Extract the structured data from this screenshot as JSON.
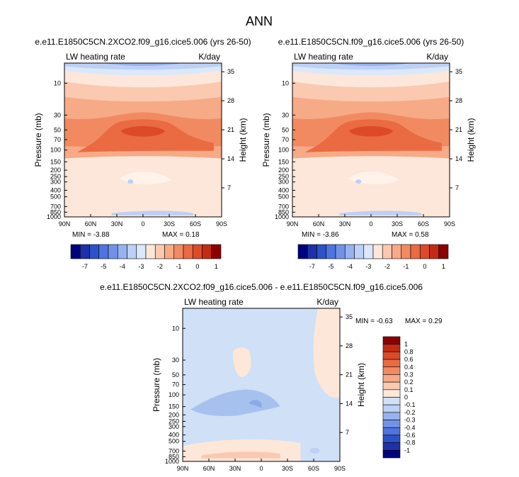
{
  "figure": {
    "title": "ANN"
  },
  "colors": {
    "blues": [
      "#00007f",
      "#1f30a8",
      "#2d51c9",
      "#4f73df",
      "#7292e8",
      "#98b2ef",
      "#bdd0f6",
      "#dbe8fb"
    ],
    "reds": [
      "#fde7da",
      "#fbc9b0",
      "#f7aa86",
      "#f28a61",
      "#ea6a42",
      "#dd4a28",
      "#c42b14",
      "#8b0000"
    ],
    "diff_blue": "#cfe0f7",
    "diff_blue_mid": "#a7c1ef",
    "diff_red": "#fde7d9"
  },
  "chart_data": [
    {
      "type": "contour",
      "panel": "top-left",
      "title": "e.e11.E1850C5CN.2XCO2.f09_g16.cice5.006 (yrs 26-50)",
      "variable": "LW heating rate",
      "units": "K/day",
      "ylabel": "Pressure (mb)",
      "y2label": "Height (km)",
      "x_ticks": [
        "90N",
        "60N",
        "30N",
        "0",
        "30S",
        "60S",
        "90S"
      ],
      "y_ticks": [
        "10",
        "30",
        "50",
        "70",
        "100",
        "150",
        "200",
        "250",
        "300",
        "400",
        "500",
        "700",
        "850",
        "1000"
      ],
      "y2_ticks": [
        "35",
        "28",
        "21",
        "14",
        "7"
      ],
      "min_label": "MIN =",
      "min": "-3.88",
      "max_label": "MAX =",
      "max": "0.18",
      "colorbar_labels": [
        "-7",
        "-5",
        "-4",
        "-3",
        "-2",
        "-1",
        "0",
        "1"
      ]
    },
    {
      "type": "contour",
      "panel": "top-right",
      "title": "e.e11.E1850C5CN.f09_g16.cice5.006 (yrs 26-50)",
      "variable": "LW heating rate",
      "units": "K/day",
      "ylabel": "Pressure (mb)",
      "y2label": "Height (km)",
      "x_ticks": [
        "90N",
        "60N",
        "30N",
        "0",
        "30S",
        "60S",
        "90S"
      ],
      "y_ticks": [
        "10",
        "30",
        "50",
        "70",
        "100",
        "150",
        "200",
        "250",
        "300",
        "400",
        "500",
        "700",
        "850",
        "1000"
      ],
      "y2_ticks": [
        "35",
        "28",
        "21",
        "14",
        "7"
      ],
      "min_label": "MIN =",
      "min": "-3.86",
      "max_label": "MAX =",
      "max": "0.58",
      "colorbar_labels": [
        "-7",
        "-5",
        "-4",
        "-3",
        "-2",
        "-1",
        "0",
        "1"
      ]
    },
    {
      "type": "contour",
      "panel": "bottom",
      "title": "e.e11.E1850C5CN.2XCO2.f09_g16.cice5.006 - e.e11.E1850C5CN.f09_g16.cice5.006",
      "variable": "LW heating rate",
      "units": "K/day",
      "ylabel": "Pressure (mb)",
      "y2label": "Height (km)",
      "x_ticks": [
        "90N",
        "60N",
        "30N",
        "0",
        "30S",
        "60S",
        "90S"
      ],
      "y_ticks": [
        "10",
        "30",
        "50",
        "70",
        "100",
        "150",
        "200",
        "250",
        "300",
        "400",
        "500",
        "700",
        "850",
        "1000"
      ],
      "y2_ticks": [
        "35",
        "28",
        "21",
        "14",
        "7"
      ],
      "min_label": "MIN =",
      "min": "-0.63",
      "max_label": "MAX =",
      "max": "0.29",
      "colorbar_labels": [
        "1",
        "0.8",
        "0.6",
        "0.4",
        "0.3",
        "0.2",
        "0.1",
        "0",
        "-0.1",
        "-0.2",
        "-0.3",
        "-0.4",
        "-0.6",
        "-0.8",
        "-1"
      ]
    }
  ]
}
